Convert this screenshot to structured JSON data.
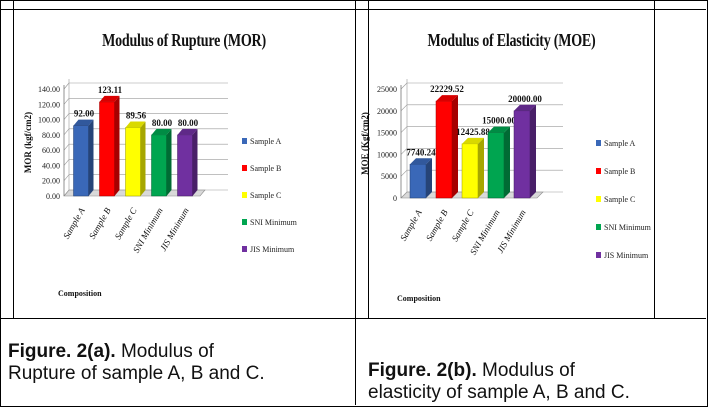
{
  "figures": [
    {
      "caption_label": "Figure. 2(a).",
      "caption_line1": "Modulus of",
      "caption_line2": "Rupture of sample A, B and C."
    },
    {
      "caption_label": "Figure. 2(b).",
      "caption_line1": "Modulus of",
      "caption_line2": "elasticity of sample A, B and C."
    }
  ],
  "chart_data": [
    {
      "type": "bar",
      "title": "Modulus of Rupture (MOR)",
      "ylabel": "MOR (kgf/cm2)",
      "xlabel": "Composition",
      "categories": [
        "Sample A",
        "Sample B",
        "Sample C",
        "SNI Minimum",
        "JIS Minimum"
      ],
      "values": [
        92.0,
        123.11,
        89.56,
        80.0,
        80.0
      ],
      "value_labels": [
        "92.00",
        "123.11",
        "89.56",
        "80.00",
        "80.00"
      ],
      "yticks": [
        "0.00",
        "20.00",
        "40.00",
        "60.00",
        "80.00",
        "100.00",
        "120.00",
        "140.00"
      ],
      "ylim": [
        0,
        140
      ],
      "colors": [
        "#3a68b8",
        "#ff0000",
        "#ffff00",
        "#00a550",
        "#7030a0"
      ],
      "legend": [
        "Sample A",
        "Sample B",
        "Sample C",
        "SNI Minimum",
        "JIS Minimum"
      ],
      "legend_position": "right",
      "grid": true
    },
    {
      "type": "bar",
      "title": "Modulus of Elasticity (MOE)",
      "ylabel": "MOE (Kgf/cm2)",
      "xlabel": "Composition",
      "categories": [
        "Sample A",
        "Sample B",
        "Sample C",
        "SNI Minimum",
        "JIS Minimum"
      ],
      "values": [
        7740.24,
        22229.52,
        12425.88,
        15000.0,
        20000.0
      ],
      "value_labels": [
        "7740.24",
        "22229.52",
        "12425.88",
        "15000.00",
        "20000.00"
      ],
      "yticks": [
        "0",
        "5000",
        "10000",
        "15000",
        "20000",
        "25000"
      ],
      "ylim": [
        0,
        25000
      ],
      "colors": [
        "#3a68b8",
        "#ff0000",
        "#ffff00",
        "#00a550",
        "#7030a0"
      ],
      "legend": [
        "Sample A",
        "Sample B",
        "Sample C",
        "SNI Minimum",
        "JIS Minimum"
      ],
      "legend_position": "right",
      "grid": true
    }
  ]
}
